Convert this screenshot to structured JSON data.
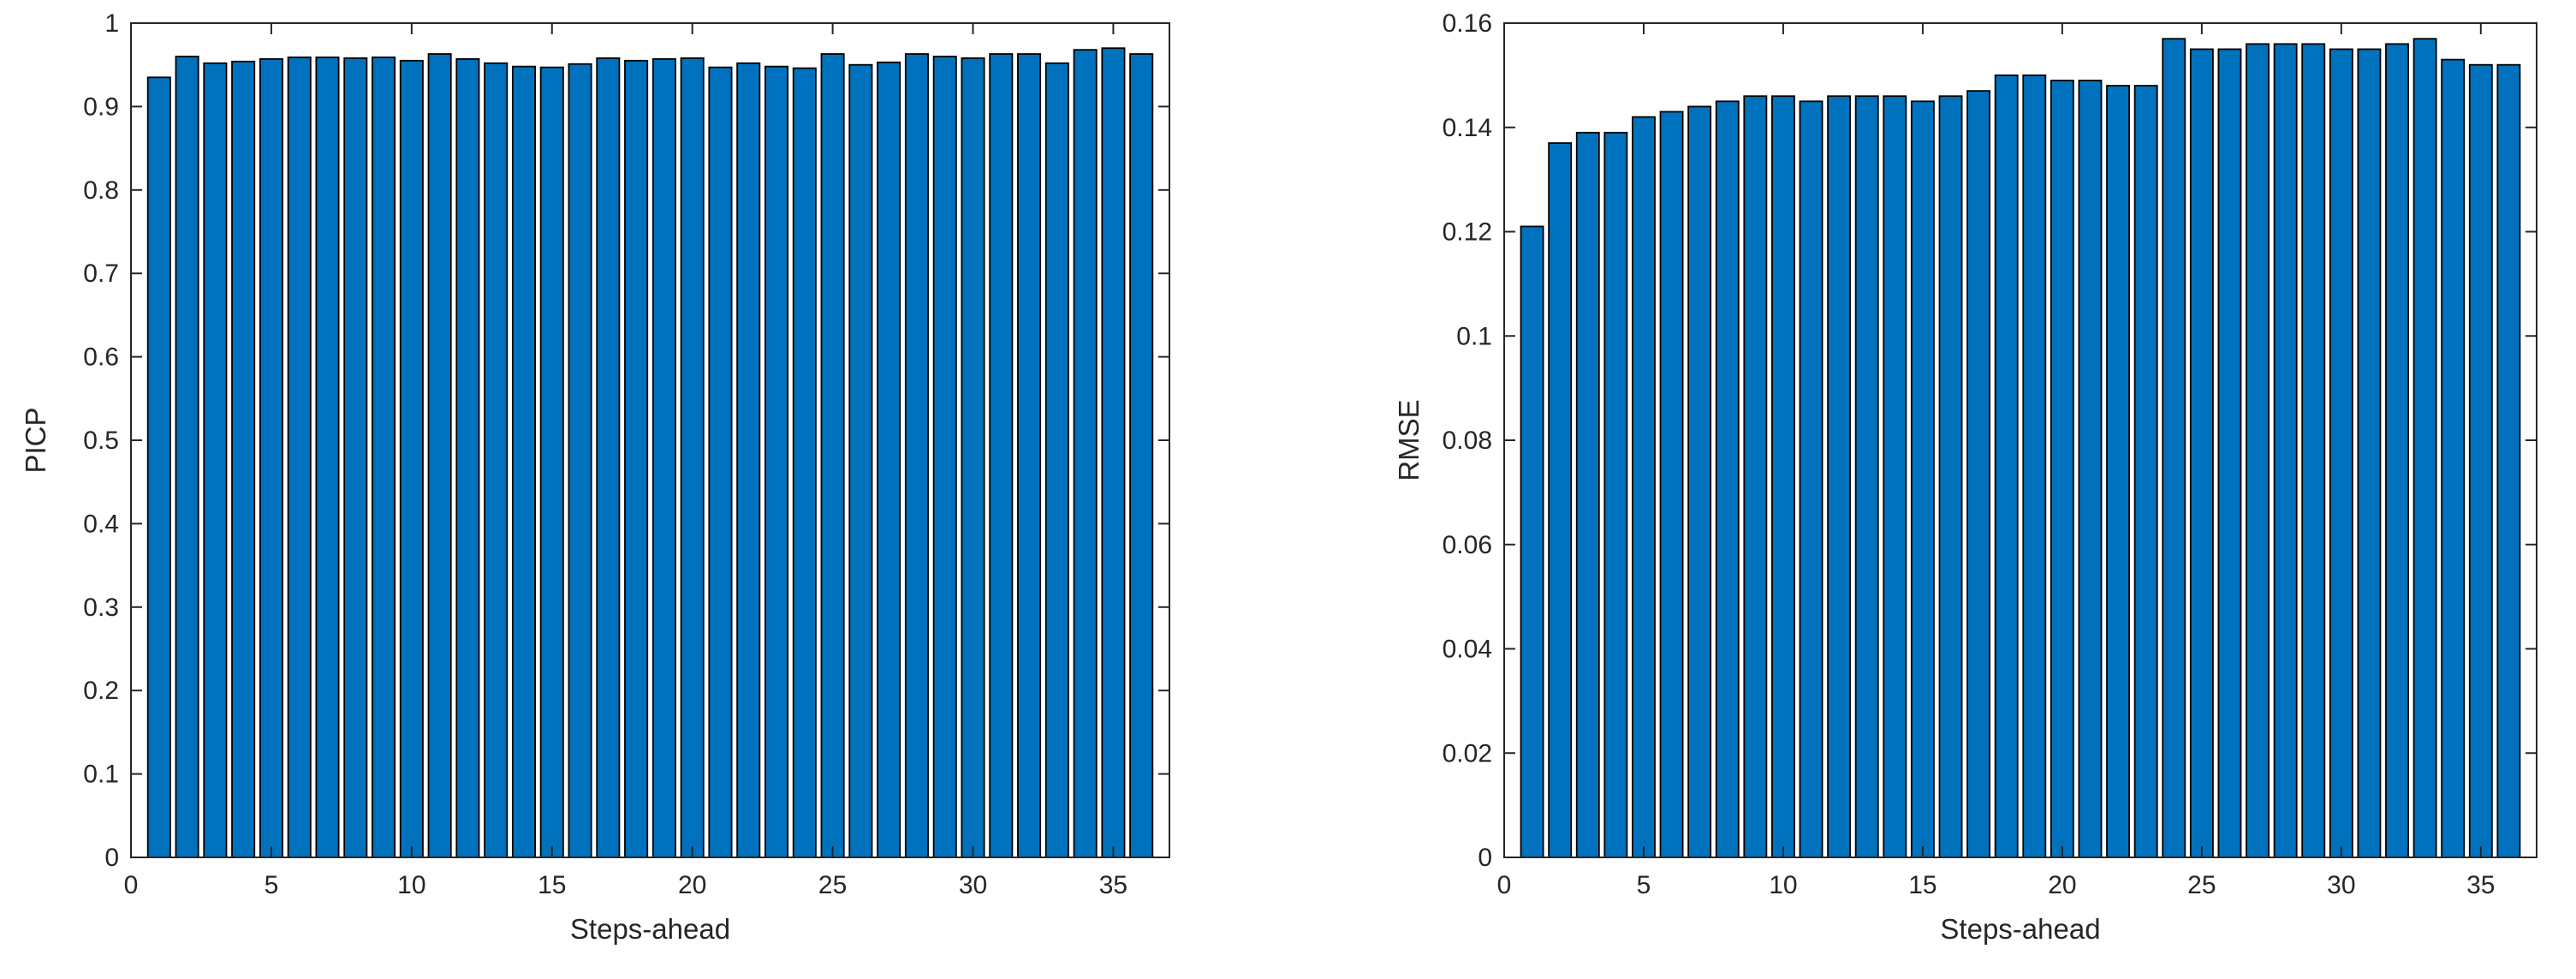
{
  "figure": {
    "background": "#ffffff",
    "axis_color": "#262626",
    "text_color": "#262626",
    "bar_fill": "#0072BD",
    "bar_edge": "#000000"
  },
  "chart_data": [
    {
      "name": "picp-chart",
      "type": "bar",
      "title": "",
      "xlabel": "Steps-ahead",
      "ylabel": "PICP",
      "xlim": [
        0,
        37
      ],
      "ylim": [
        0,
        1
      ],
      "bar_width": 0.8,
      "grid": false,
      "legend": null,
      "xticks": [
        0,
        5,
        10,
        15,
        20,
        25,
        30,
        35
      ],
      "xtick_labels": [
        "0",
        "5",
        "10",
        "15",
        "20",
        "25",
        "30",
        "35"
      ],
      "yticks": [
        0,
        0.1,
        0.2,
        0.3,
        0.4,
        0.5,
        0.6,
        0.7,
        0.8,
        0.9,
        1
      ],
      "ytick_labels": [
        "0",
        "0.1",
        "0.2",
        "0.3",
        "0.4",
        "0.5",
        "0.6",
        "0.7",
        "0.8",
        "0.9",
        "1"
      ],
      "x": [
        1,
        2,
        3,
        4,
        5,
        6,
        7,
        8,
        9,
        10,
        11,
        12,
        13,
        14,
        15,
        16,
        17,
        18,
        19,
        20,
        21,
        22,
        23,
        24,
        25,
        26,
        27,
        28,
        29,
        30,
        31,
        32,
        33,
        34,
        35,
        36
      ],
      "values": [
        0.935,
        0.96,
        0.952,
        0.954,
        0.957,
        0.959,
        0.959,
        0.958,
        0.959,
        0.955,
        0.963,
        0.957,
        0.952,
        0.948,
        0.947,
        0.951,
        0.958,
        0.955,
        0.957,
        0.958,
        0.947,
        0.952,
        0.948,
        0.946,
        0.963,
        0.95,
        0.953,
        0.963,
        0.96,
        0.958,
        0.963,
        0.963,
        0.952,
        0.968,
        0.97,
        0.963
      ]
    },
    {
      "name": "rmse-chart",
      "type": "bar",
      "title": "",
      "xlabel": "Steps-ahead",
      "ylabel": "RMSE",
      "xlim": [
        0,
        37
      ],
      "ylim": [
        0,
        0.16
      ],
      "bar_width": 0.8,
      "grid": false,
      "legend": null,
      "xticks": [
        0,
        5,
        10,
        15,
        20,
        25,
        30,
        35
      ],
      "xtick_labels": [
        "0",
        "5",
        "10",
        "15",
        "20",
        "25",
        "30",
        "35"
      ],
      "yticks": [
        0,
        0.02,
        0.04,
        0.06,
        0.08,
        0.1,
        0.12,
        0.14,
        0.16
      ],
      "ytick_labels": [
        "0",
        "0.02",
        "0.04",
        "0.06",
        "0.08",
        "0.1",
        "0.12",
        "0.14",
        "0.16"
      ],
      "x": [
        1,
        2,
        3,
        4,
        5,
        6,
        7,
        8,
        9,
        10,
        11,
        12,
        13,
        14,
        15,
        16,
        17,
        18,
        19,
        20,
        21,
        22,
        23,
        24,
        25,
        26,
        27,
        28,
        29,
        30,
        31,
        32,
        33,
        34,
        35,
        36
      ],
      "values": [
        0.121,
        0.137,
        0.139,
        0.139,
        0.142,
        0.143,
        0.144,
        0.145,
        0.146,
        0.146,
        0.145,
        0.146,
        0.146,
        0.146,
        0.145,
        0.146,
        0.147,
        0.15,
        0.15,
        0.149,
        0.149,
        0.148,
        0.148,
        0.157,
        0.155,
        0.155,
        0.156,
        0.156,
        0.156,
        0.155,
        0.155,
        0.156,
        0.157,
        0.153,
        0.152,
        0.152
      ]
    }
  ]
}
